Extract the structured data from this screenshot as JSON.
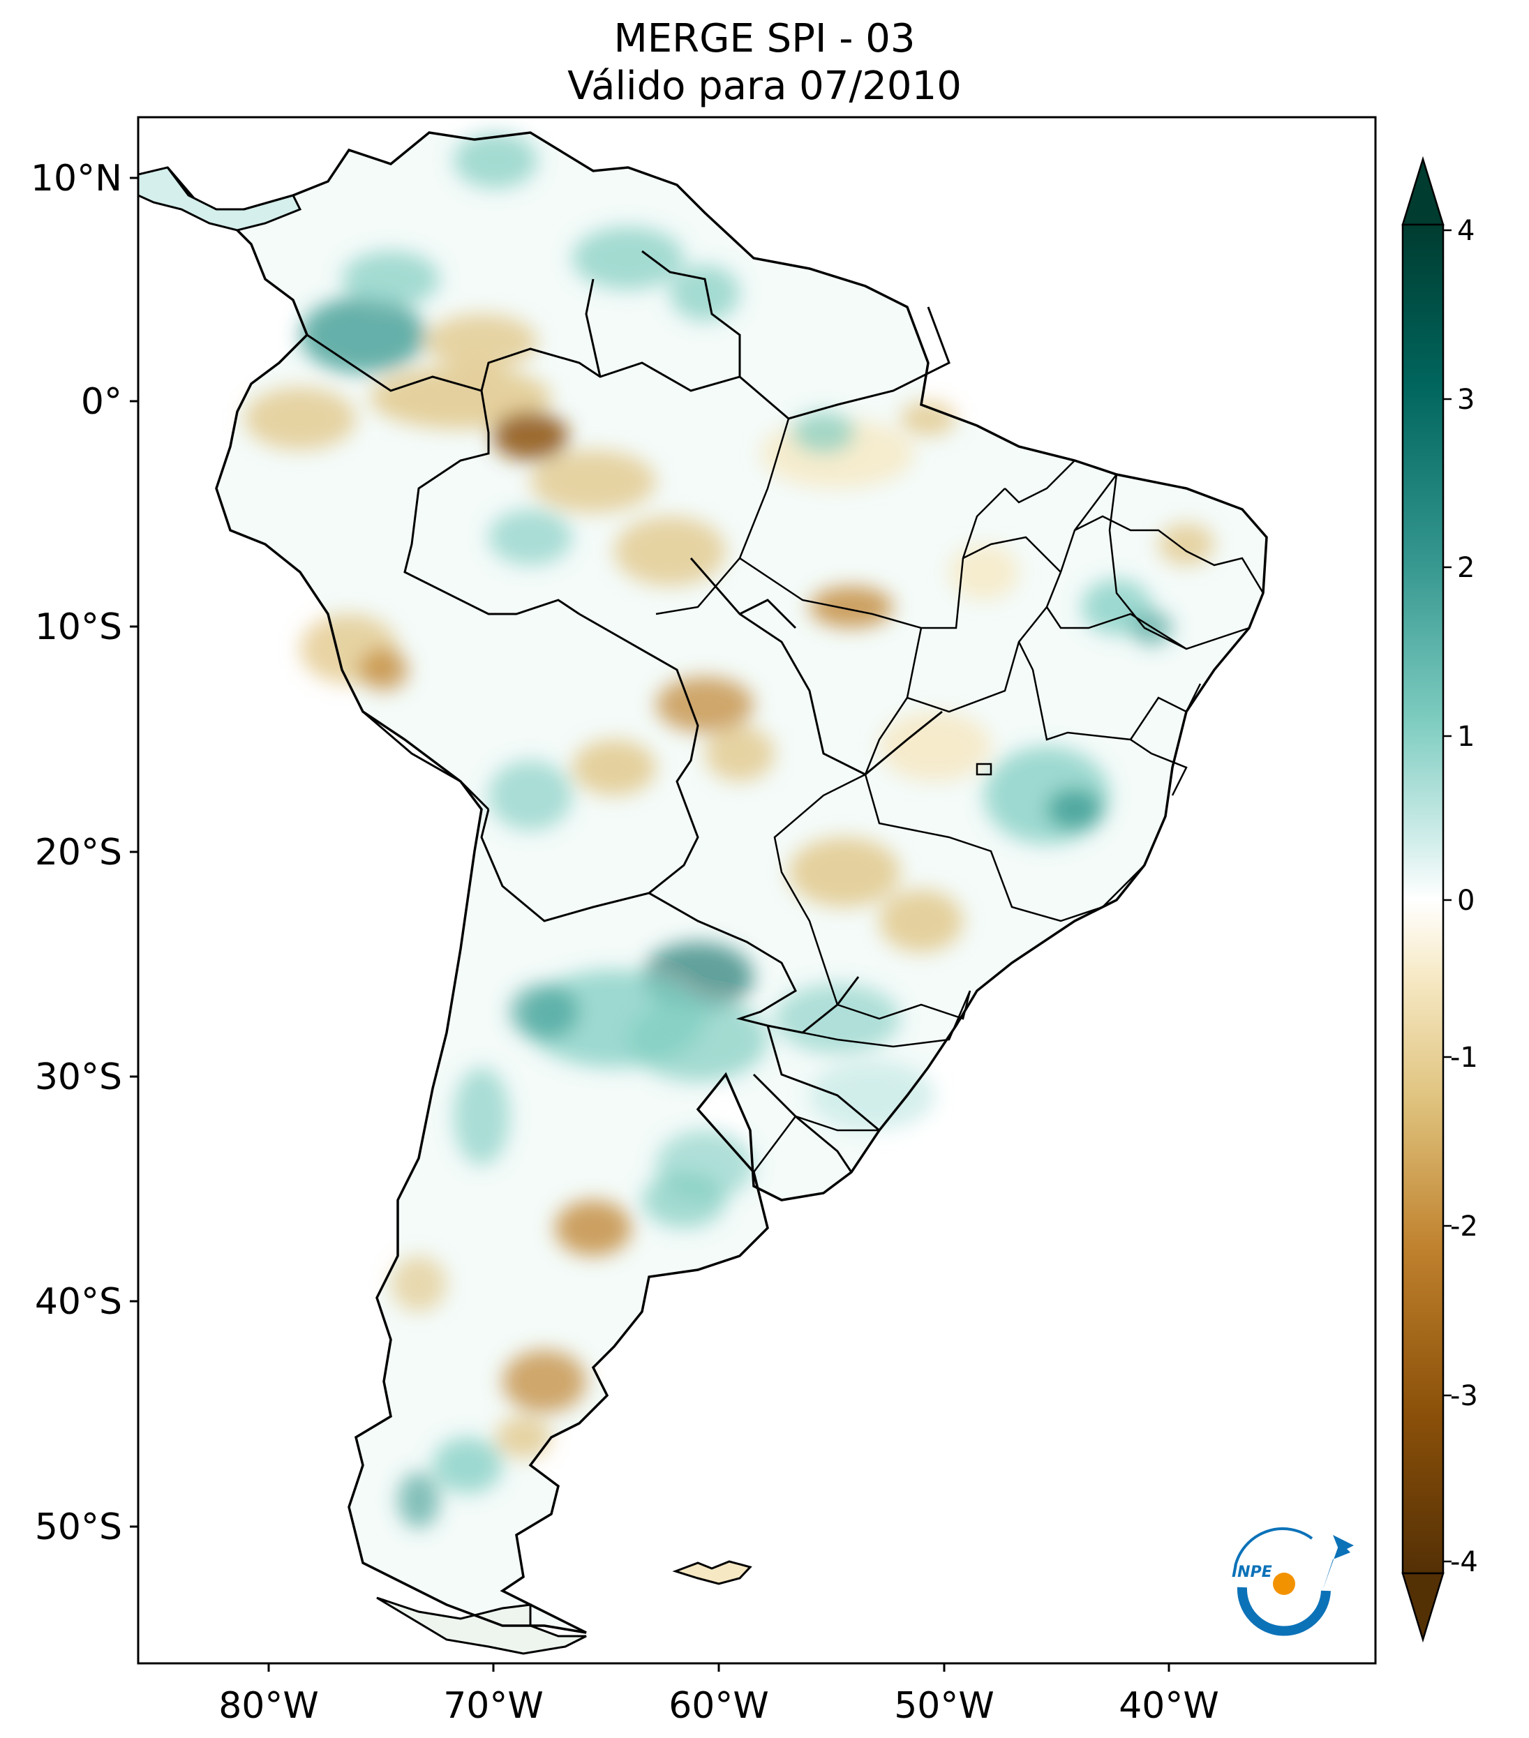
{
  "title": {
    "line1": "MERGE   SPI - 03",
    "line2": "Válido para 07/2010"
  },
  "axes": {
    "lon_ticks": [
      "80°W",
      "70°W",
      "60°W",
      "50°W",
      "40°W"
    ],
    "lat_ticks": [
      "10°N",
      "0°",
      "10°S",
      "20°S",
      "30°S",
      "40°S",
      "50°S"
    ]
  },
  "colorbar": {
    "ticks": [
      "4",
      "3",
      "2",
      "1",
      "0",
      "-1",
      "-2",
      "-3",
      "-4"
    ],
    "colors": {
      "max": "#003c30",
      "high": "#01665e",
      "mid_high": "#35978f",
      "low_pos": "#80cdc1",
      "pale_pos": "#c7eae5",
      "zero": "#ffffff",
      "pale_neg": "#f6e8c3",
      "low_neg": "#dfc27d",
      "mid_neg": "#bf812d",
      "strong_neg": "#8c510a",
      "min": "#543005"
    }
  },
  "logo": {
    "text": "INPE"
  }
}
